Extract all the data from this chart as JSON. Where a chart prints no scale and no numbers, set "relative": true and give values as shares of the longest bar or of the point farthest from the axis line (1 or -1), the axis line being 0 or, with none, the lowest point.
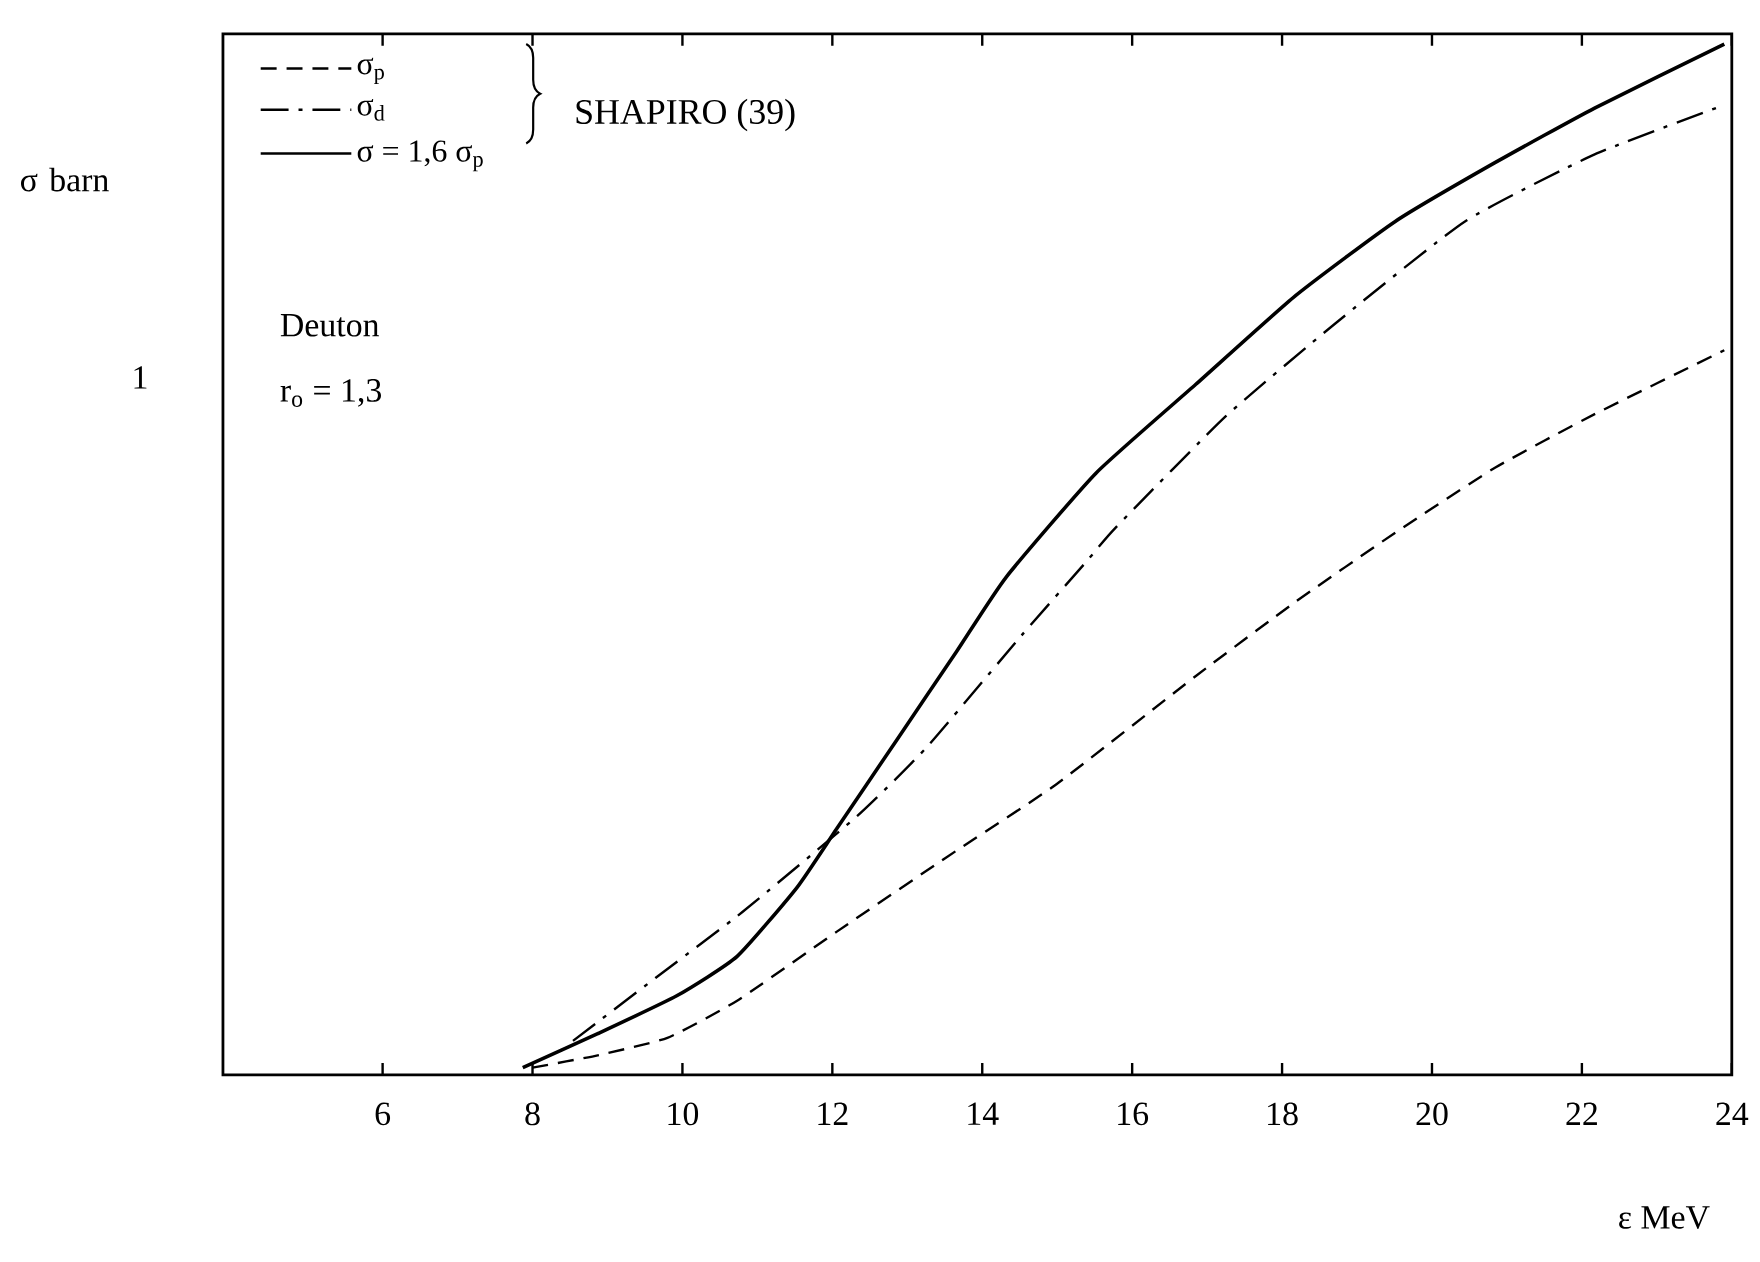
{
  "chart_data": {
    "type": "line",
    "relative": true,
    "xlabel": "ε  MeV",
    "ylabel": "σ barn",
    "xlim": [
      3.87,
      24
    ],
    "xticks": [
      6,
      8,
      10,
      12,
      14,
      16,
      18,
      20,
      22,
      24
    ],
    "legend": "top left",
    "annotations": [
      "1",
      "SHAPIRO (39)",
      "Deuton",
      "r$_{o}$ = 1,3"
    ],
    "series": [
      {
        "name": "σ$_{p}$",
        "color": "#000000",
        "line_style": "dashed",
        "x": [
          8.0,
          8.87,
          9.8,
          10.73,
          12.06,
          13.52,
          14.99,
          16.85,
          18.18,
          19.51,
          20.84,
          22.17,
          23.9
        ],
        "values": [
          0.007,
          0.019,
          0.036,
          0.072,
          0.139,
          0.211,
          0.282,
          0.387,
          0.459,
          0.526,
          0.589,
          0.641,
          0.703
        ]
      },
      {
        "name": "σ$_{d}$",
        "color": "#000000",
        "line_style": "dashdot",
        "x": [
          8.54,
          9.64,
          10.8,
          12.33,
          13.26,
          14.52,
          15.39,
          15.78,
          17.25,
          18.71,
          20.44,
          22.17,
          23.9
        ],
        "values": [
          0.033,
          0.094,
          0.158,
          0.251,
          0.318,
          0.426,
          0.498,
          0.531,
          0.639,
          0.729,
          0.828,
          0.893,
          0.941
        ]
      },
      {
        "name": "σ = 1,6   σ$_{p}$",
        "color": "#000000",
        "line_style": "solid",
        "x": [
          7.87,
          8.87,
          9.93,
          10.73,
          11.53,
          12.06,
          12.86,
          13.66,
          14.32,
          15.52,
          16.85,
          18.18,
          19.51,
          20.84,
          22.17,
          23.9
        ],
        "values": [
          0.007,
          0.04,
          0.077,
          0.115,
          0.182,
          0.239,
          0.325,
          0.411,
          0.483,
          0.584,
          0.67,
          0.756,
          0.828,
          0.885,
          0.938,
          1.0
        ]
      }
    ]
  }
}
